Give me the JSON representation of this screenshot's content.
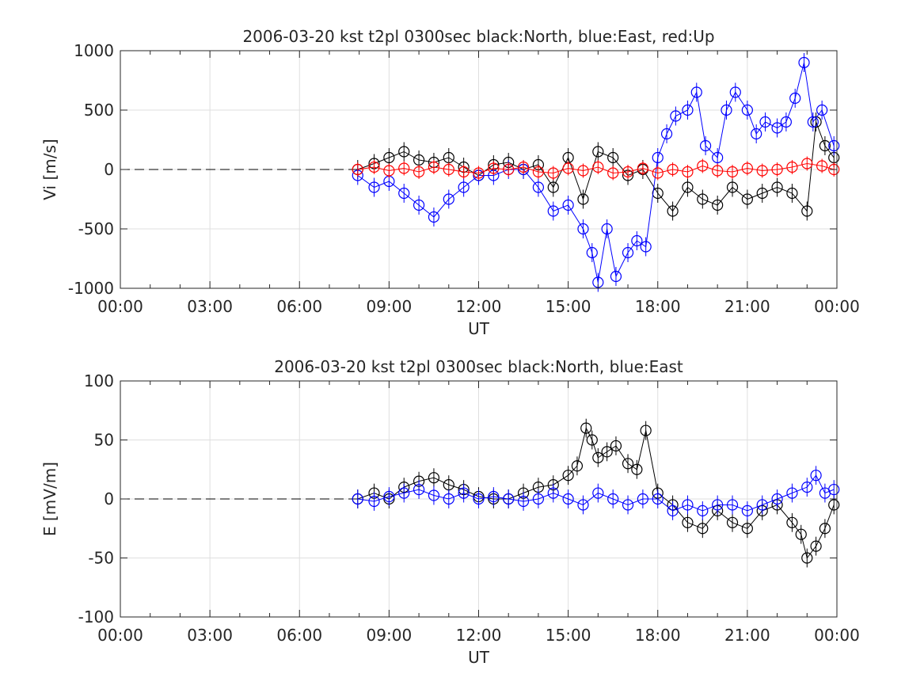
{
  "chart_data": [
    {
      "type": "scatter",
      "title": "2006-03-20 kst t2pl 0300sec black:North, blue:East, red:Up",
      "xlabel": "UT",
      "ylabel": "Vi [m/s]",
      "xlim": [
        0,
        24
      ],
      "ylim": [
        -1000,
        1000
      ],
      "xticks": [
        "00:00",
        "03:00",
        "06:00",
        "09:00",
        "12:00",
        "15:00",
        "18:00",
        "21:00",
        "00:00"
      ],
      "yticks": [
        "1000",
        "500",
        "0",
        "-500",
        "-1000"
      ],
      "grid": true,
      "legend": "none",
      "reference_line": {
        "style": "dashed",
        "x": [
          0,
          7.95
        ],
        "y": 0
      },
      "series": [
        {
          "color": "#000000",
          "x": [
            7.95,
            8.5,
            9.0,
            9.5,
            10.0,
            10.5,
            11.0,
            11.5,
            12.0,
            12.5,
            13.0,
            13.5,
            14.0,
            14.5,
            15.0,
            15.5,
            16.0,
            16.5,
            17.0,
            17.5,
            18.0,
            18.5,
            19.0,
            19.5,
            20.0,
            20.5,
            21.0,
            21.5,
            22.0,
            22.5,
            23.0,
            23.3,
            23.6,
            23.9
          ],
          "y": [
            0,
            50,
            100,
            150,
            80,
            60,
            100,
            20,
            -50,
            40,
            60,
            0,
            40,
            -150,
            100,
            -250,
            150,
            100,
            -50,
            0,
            -200,
            -350,
            -150,
            -250,
            -300,
            -150,
            -250,
            -200,
            -150,
            -200,
            -350,
            400,
            200,
            100
          ]
        },
        {
          "color": "#0000ff",
          "x": [
            7.95,
            8.5,
            9.0,
            9.5,
            10.0,
            10.5,
            11.0,
            11.5,
            12.0,
            12.5,
            13.0,
            13.5,
            14.0,
            14.5,
            15.0,
            15.5,
            15.8,
            16.0,
            16.3,
            16.6,
            17.0,
            17.3,
            17.6,
            18.0,
            18.3,
            18.6,
            19.0,
            19.3,
            19.6,
            20.0,
            20.3,
            20.6,
            21.0,
            21.3,
            21.6,
            22.0,
            22.3,
            22.6,
            22.9,
            23.2,
            23.5,
            23.9
          ],
          "y": [
            -50,
            -150,
            -100,
            -200,
            -300,
            -400,
            -250,
            -150,
            -50,
            -50,
            0,
            0,
            -150,
            -350,
            -300,
            -500,
            -700,
            -950,
            -500,
            -900,
            -700,
            -600,
            -650,
            100,
            300,
            450,
            500,
            650,
            200,
            100,
            500,
            650,
            500,
            300,
            400,
            350,
            400,
            600,
            900,
            400,
            500,
            200
          ]
        },
        {
          "color": "#ff0000",
          "x": [
            7.95,
            8.5,
            9.0,
            9.5,
            10.0,
            10.5,
            11.0,
            11.5,
            12.0,
            12.5,
            13.0,
            13.5,
            14.0,
            14.5,
            15.0,
            15.5,
            16.0,
            16.5,
            17.0,
            17.5,
            18.0,
            18.5,
            19.0,
            19.5,
            20.0,
            20.5,
            21.0,
            21.5,
            22.0,
            22.5,
            23.0,
            23.5,
            23.9
          ],
          "y": [
            0,
            20,
            -10,
            10,
            -20,
            20,
            0,
            -20,
            -30,
            10,
            0,
            20,
            -20,
            -30,
            10,
            -10,
            20,
            -30,
            -20,
            10,
            -30,
            0,
            -20,
            30,
            -10,
            -20,
            10,
            -10,
            0,
            20,
            50,
            30,
            0
          ]
        }
      ]
    },
    {
      "type": "scatter",
      "title": "2006-03-20 kst t2pl 0300sec black:North, blue:East",
      "xlabel": "UT",
      "ylabel": "E [mV/m]",
      "xlim": [
        0,
        24
      ],
      "ylim": [
        -100,
        100
      ],
      "xticks": [
        "00:00",
        "03:00",
        "06:00",
        "09:00",
        "12:00",
        "15:00",
        "18:00",
        "21:00",
        "00:00"
      ],
      "yticks": [
        "100",
        "50",
        "0",
        "-50",
        "-100"
      ],
      "grid": true,
      "legend": "none",
      "reference_line": {
        "style": "dashed",
        "x": [
          0,
          7.95
        ],
        "y": 0
      },
      "series": [
        {
          "color": "#000000",
          "x": [
            7.95,
            8.5,
            9.0,
            9.5,
            10.0,
            10.5,
            11.0,
            11.5,
            12.0,
            12.5,
            13.0,
            13.5,
            14.0,
            14.5,
            15.0,
            15.3,
            15.6,
            15.8,
            16.0,
            16.3,
            16.6,
            17.0,
            17.3,
            17.6,
            18.0,
            18.5,
            19.0,
            19.5,
            20.0,
            20.5,
            21.0,
            21.5,
            22.0,
            22.5,
            22.8,
            23.0,
            23.3,
            23.6,
            23.9
          ],
          "y": [
            0,
            5,
            0,
            10,
            15,
            18,
            12,
            8,
            2,
            0,
            0,
            5,
            10,
            12,
            20,
            28,
            60,
            50,
            35,
            40,
            45,
            30,
            25,
            58,
            5,
            -5,
            -20,
            -25,
            -10,
            -20,
            -25,
            -10,
            -5,
            -20,
            -30,
            -50,
            -40,
            -25,
            -5
          ]
        },
        {
          "color": "#0000ff",
          "x": [
            7.95,
            8.5,
            9.0,
            9.5,
            10.0,
            10.5,
            11.0,
            11.5,
            12.0,
            12.5,
            13.0,
            13.5,
            14.0,
            14.5,
            15.0,
            15.5,
            16.0,
            16.5,
            17.0,
            17.5,
            18.0,
            18.5,
            19.0,
            19.5,
            20.0,
            20.5,
            21.0,
            21.5,
            22.0,
            22.5,
            23.0,
            23.3,
            23.6,
            23.9
          ],
          "y": [
            0,
            -2,
            2,
            5,
            8,
            3,
            0,
            5,
            0,
            2,
            0,
            -2,
            0,
            5,
            0,
            -5,
            5,
            0,
            -5,
            0,
            0,
            -10,
            -5,
            -10,
            -5,
            -5,
            -10,
            -5,
            0,
            5,
            10,
            20,
            5,
            8
          ]
        }
      ]
    }
  ]
}
